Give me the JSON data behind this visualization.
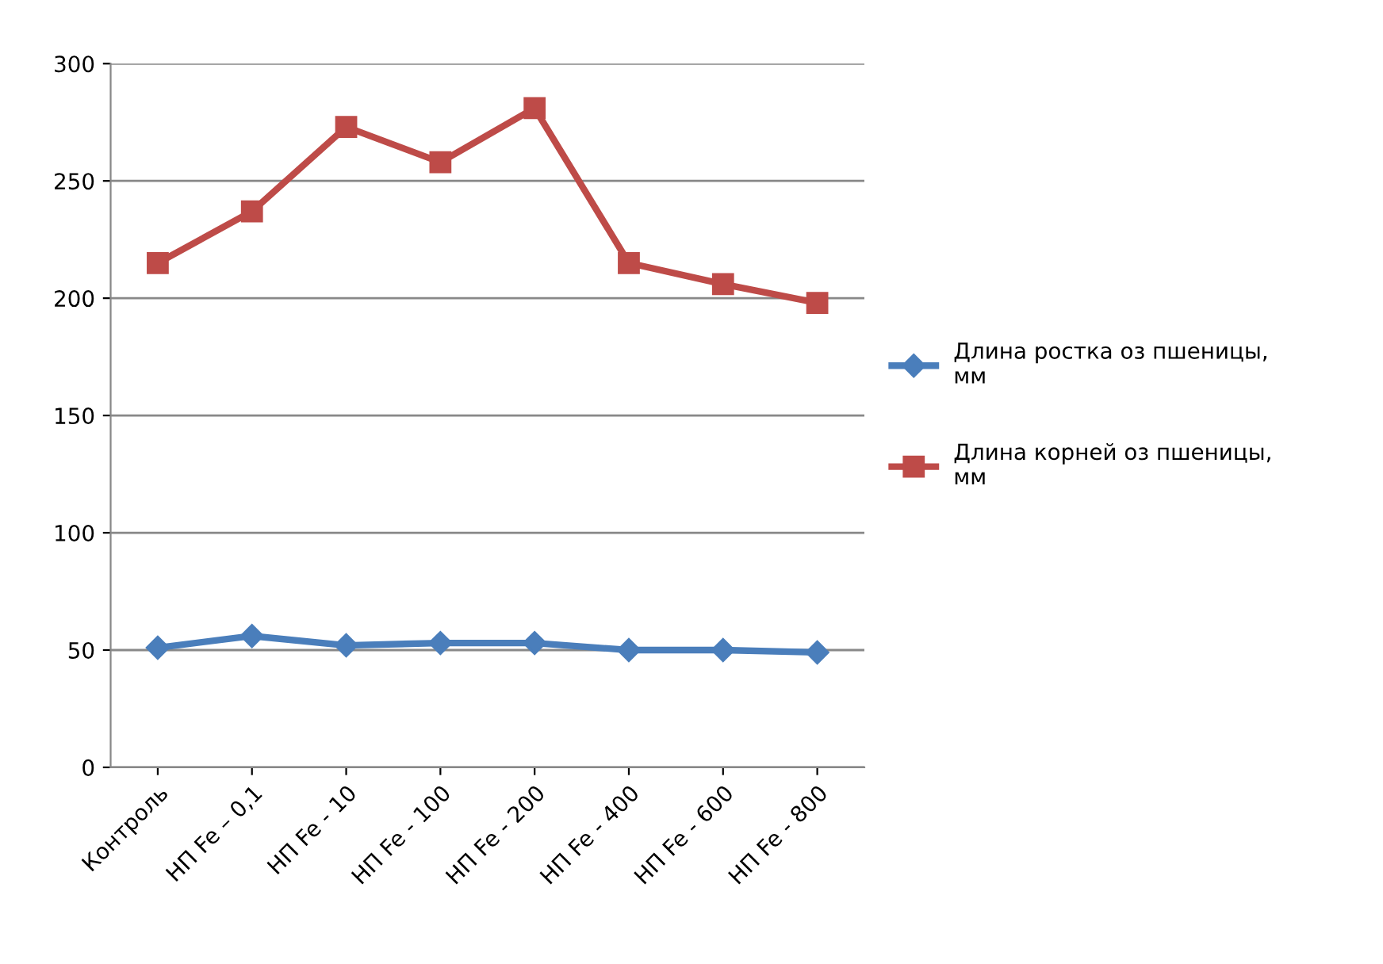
{
  "chart_data": {
    "type": "line",
    "categories": [
      "Контроль",
      "НП Fe – 0,1",
      "НП Fe - 10",
      "НП Fe - 100",
      "НП Fe - 200",
      "НП Fe - 400",
      "НП Fe - 600",
      "НП Fe - 800"
    ],
    "series": [
      {
        "name": "Длина ростка оз пшеницы,\nмм",
        "color": "#4a7ebb",
        "marker": "diamond",
        "values": [
          51,
          56,
          52,
          53,
          53,
          50,
          50,
          49
        ]
      },
      {
        "name": "Длина корней оз пшеницы,\nмм",
        "color": "#be4b48",
        "marker": "square",
        "values": [
          215,
          237,
          273,
          258,
          281,
          215,
          206,
          198
        ]
      }
    ],
    "ylim": [
      0,
      300
    ],
    "yticks": [
      0,
      50,
      100,
      150,
      200,
      250,
      300
    ],
    "grid": "y",
    "legend": "right",
    "line_style": "solid"
  }
}
